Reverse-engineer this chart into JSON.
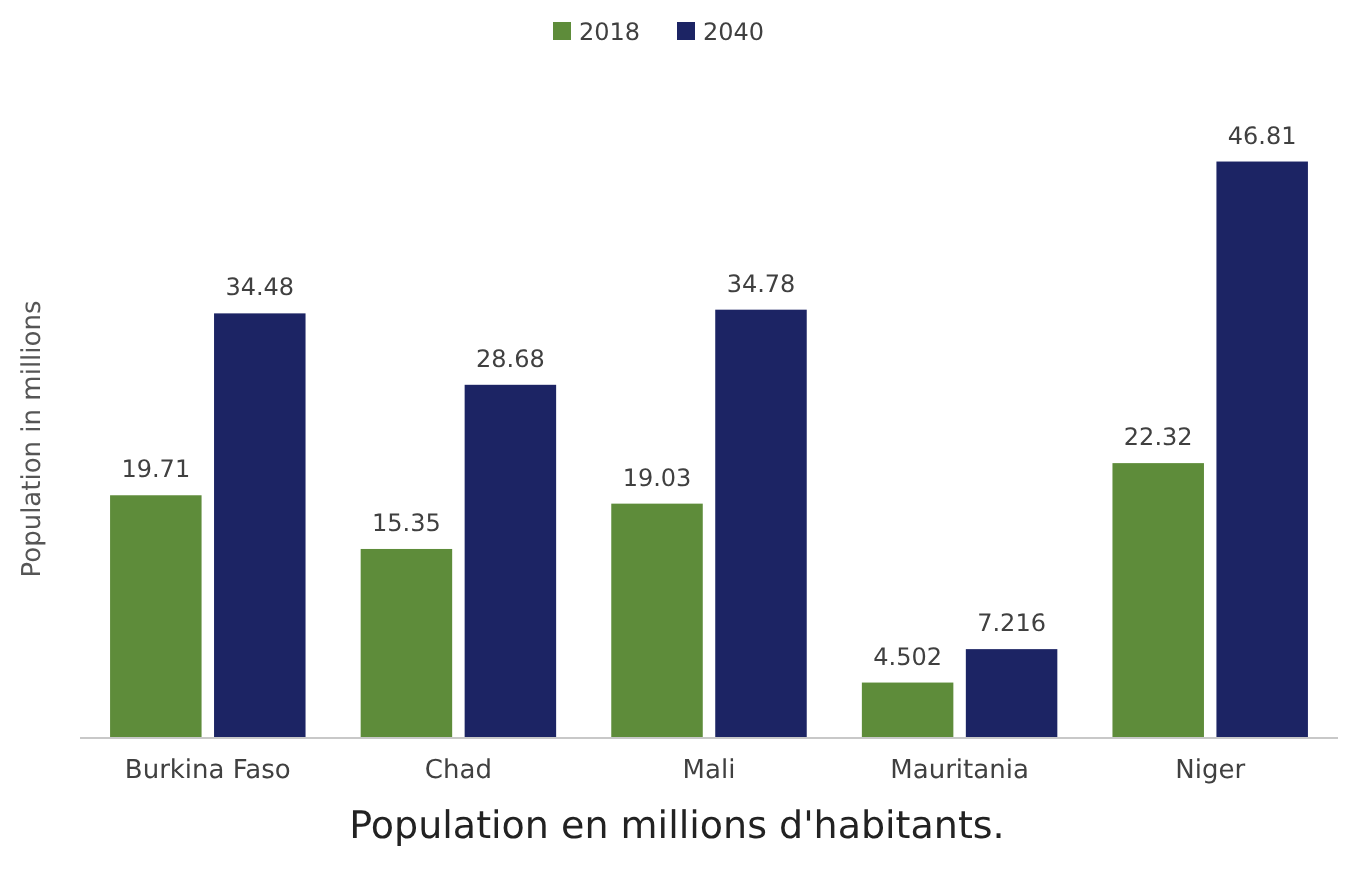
{
  "chart_data": {
    "type": "bar",
    "ylabel": "Population in millions",
    "categories": [
      "Burkina Faso",
      "Chad",
      "Mali",
      "Mauritania",
      "Niger"
    ],
    "series": [
      {
        "name": "2018",
        "color": "#5e8c3a",
        "values": [
          19.71,
          15.35,
          19.03,
          4.502,
          22.32
        ]
      },
      {
        "name": "2040",
        "color": "#1c2464",
        "values": [
          34.48,
          28.68,
          34.78,
          7.216,
          46.81
        ]
      }
    ],
    "data_labels": true,
    "legend": "top",
    "annotations": [
      "Population en millions d'habitants."
    ]
  }
}
